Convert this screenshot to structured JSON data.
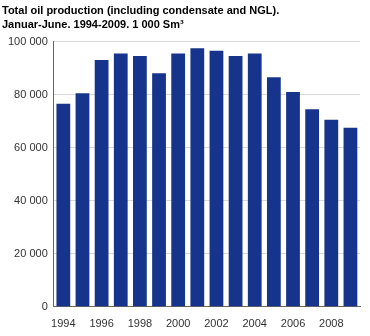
{
  "chart_data": {
    "type": "bar",
    "title": [
      "Total oil production (including condensate and NGL).",
      "Januar-June. 1994-2009. 1 000 Sm³"
    ],
    "categories": [
      "1994",
      null,
      "1996",
      null,
      "1998",
      null,
      "2000",
      null,
      "2002",
      null,
      "2004",
      null,
      "2006",
      null,
      "2008",
      null
    ],
    "values": [
      76500,
      80500,
      93000,
      95500,
      94500,
      88000,
      95500,
      97500,
      96500,
      94500,
      95500,
      86500,
      81000,
      74500,
      70500,
      67500
    ],
    "color": "#17348c",
    "ylim": [
      0,
      100000
    ],
    "yticks": [
      0,
      {
        "value": 20000,
        "label": "20 000"
      },
      {
        "value": 40000,
        "label": "40 000"
      },
      {
        "value": 60000,
        "label": "60 000"
      },
      {
        "value": 80000,
        "label": "80 000"
      },
      {
        "value": 100000,
        "label": "100 000"
      }
    ],
    "grid": true
  }
}
